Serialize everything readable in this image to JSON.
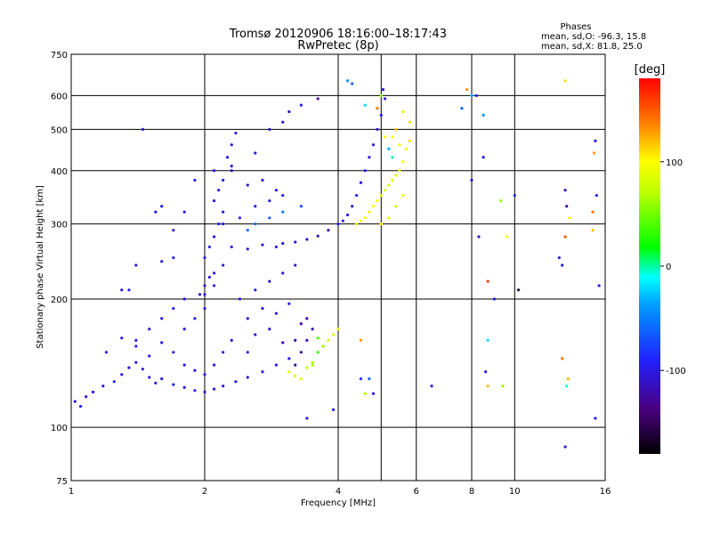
{
  "chart_data": {
    "type": "scatter",
    "title": "Tromsø 20120906 18:16:00–18:17:43",
    "subtitle": "RwPretec (8p)",
    "xlabel": "Frequency [MHz]",
    "ylabel": "Stationary phase Virtual Height [km]",
    "x_scale": "log",
    "y_scale": "log",
    "xlim": [
      1,
      16
    ],
    "ylim": [
      75,
      750
    ],
    "x_ticks": [
      1,
      2,
      4,
      6,
      8,
      10,
      16
    ],
    "x_tick_labels": [
      "1",
      "2",
      "4",
      "6",
      "8",
      "10",
      "16"
    ],
    "y_ticks": [
      75,
      100,
      200,
      300,
      400,
      500,
      600,
      750
    ],
    "y_tick_labels": [
      "75",
      "100",
      "200",
      "300",
      "400",
      "500",
      "600",
      "750"
    ],
    "x_grid": [
      1,
      2,
      4,
      5,
      6,
      8,
      10,
      16
    ],
    "y_grid": [
      100,
      200,
      300,
      400,
      500,
      600,
      750
    ],
    "grid": true,
    "phases_header": "Phases",
    "stats": [
      "mean, sd,O: -96.3, 15.8",
      "mean, sd,X:  81.8, 25.0"
    ],
    "colorbar": {
      "label": "[deg]",
      "range": [
        -180,
        180
      ],
      "ticks": [
        100,
        0,
        -100
      ],
      "tick_labels": [
        "100",
        "0",
        "-100"
      ]
    },
    "series": [
      {
        "points": [
          [
            1.02,
            115,
            -100
          ],
          [
            1.05,
            112,
            -100
          ],
          [
            1.08,
            118,
            -105
          ],
          [
            1.12,
            121,
            -100
          ],
          [
            1.18,
            125,
            -102
          ],
          [
            1.25,
            128,
            -98
          ],
          [
            1.3,
            133,
            -100
          ],
          [
            1.35,
            138,
            -104
          ],
          [
            1.4,
            142,
            -100
          ],
          [
            1.45,
            137,
            -99
          ],
          [
            1.5,
            131,
            -101
          ],
          [
            1.55,
            127,
            -103
          ],
          [
            1.6,
            130,
            -100
          ],
          [
            1.7,
            126,
            -98
          ],
          [
            1.8,
            124,
            -101
          ],
          [
            1.9,
            122,
            -100
          ],
          [
            2.0,
            121,
            -99
          ],
          [
            2.1,
            123,
            -100
          ],
          [
            2.2,
            125,
            -102
          ],
          [
            2.35,
            128,
            -100
          ],
          [
            2.5,
            131,
            -98
          ],
          [
            2.7,
            135,
            -103
          ],
          [
            2.9,
            140,
            -100
          ],
          [
            3.1,
            145,
            -101
          ],
          [
            1.2,
            150,
            -100
          ],
          [
            1.3,
            162,
            -105
          ],
          [
            1.4,
            155,
            -98
          ],
          [
            1.5,
            147,
            -100
          ],
          [
            1.6,
            158,
            -102
          ],
          [
            1.7,
            150,
            -100
          ],
          [
            1.8,
            140,
            -101
          ],
          [
            1.9,
            136,
            -100
          ],
          [
            2.0,
            133,
            -100
          ],
          [
            2.1,
            140,
            -99
          ],
          [
            2.2,
            150,
            -100
          ],
          [
            2.3,
            160,
            -100
          ],
          [
            2.5,
            150,
            -97
          ],
          [
            2.6,
            165,
            -105
          ],
          [
            2.8,
            170,
            -100
          ],
          [
            3.0,
            158,
            -120
          ],
          [
            3.2,
            160,
            -125
          ],
          [
            3.3,
            175,
            -120
          ],
          [
            1.8,
            170,
            -100
          ],
          [
            1.9,
            180,
            -101
          ],
          [
            2.0,
            190,
            -100
          ],
          [
            2.0,
            205,
            -98
          ],
          [
            2.1,
            215,
            -100
          ],
          [
            2.1,
            230,
            -100
          ],
          [
            2.2,
            240,
            -102
          ],
          [
            2.0,
            250,
            -100
          ],
          [
            2.05,
            265,
            -99
          ],
          [
            2.1,
            280,
            -100
          ],
          [
            2.15,
            300,
            -100
          ],
          [
            2.2,
            320,
            -101
          ],
          [
            2.1,
            340,
            -100
          ],
          [
            2.15,
            360,
            -98
          ],
          [
            2.2,
            380,
            -100
          ],
          [
            2.3,
            400,
            -103
          ],
          [
            2.25,
            430,
            -100
          ],
          [
            2.3,
            460,
            -100
          ],
          [
            2.35,
            490,
            -100
          ],
          [
            1.95,
            205,
            -110
          ],
          [
            2.0,
            215,
            -105
          ],
          [
            2.05,
            225,
            -100
          ],
          [
            2.3,
            265,
            -100
          ],
          [
            2.5,
            262,
            -100
          ],
          [
            2.7,
            268,
            -101
          ],
          [
            2.9,
            265,
            -100
          ],
          [
            3.0,
            270,
            -100
          ],
          [
            3.2,
            272,
            -102
          ],
          [
            3.4,
            276,
            -110
          ],
          [
            3.6,
            281,
            -115
          ],
          [
            3.8,
            290,
            -125
          ],
          [
            4.0,
            300,
            -100
          ],
          [
            4.1,
            305,
            -100
          ],
          [
            4.2,
            315,
            -101
          ],
          [
            4.3,
            330,
            -100
          ],
          [
            4.4,
            350,
            -100
          ],
          [
            4.5,
            375,
            -102
          ],
          [
            4.6,
            400,
            -100
          ],
          [
            4.7,
            430,
            -100
          ],
          [
            4.8,
            460,
            -99
          ],
          [
            4.9,
            500,
            -100
          ],
          [
            5.0,
            540,
            -100
          ],
          [
            5.1,
            590,
            -100
          ],
          [
            5.05,
            620,
            -100
          ],
          [
            2.5,
            290,
            -60
          ],
          [
            2.6,
            300,
            -55
          ],
          [
            2.8,
            310,
            -65
          ],
          [
            3.0,
            320,
            -50
          ],
          [
            3.3,
            330,
            -70
          ],
          [
            2.2,
            300,
            -100
          ],
          [
            2.4,
            310,
            -100
          ],
          [
            2.6,
            330,
            -100
          ],
          [
            2.8,
            340,
            -100
          ],
          [
            3.0,
            350,
            -100
          ],
          [
            2.1,
            400,
            -100
          ],
          [
            2.3,
            410,
            -100
          ],
          [
            2.5,
            370,
            -100
          ],
          [
            2.7,
            380,
            -100
          ],
          [
            2.9,
            360,
            -100
          ],
          [
            2.6,
            440,
            -100
          ],
          [
            2.8,
            500,
            -100
          ],
          [
            3.0,
            520,
            -110
          ],
          [
            3.1,
            550,
            -115
          ],
          [
            3.3,
            570,
            -100
          ],
          [
            3.6,
            590,
            -130
          ],
          [
            1.45,
            500,
            -100
          ],
          [
            1.55,
            320,
            -100
          ],
          [
            1.6,
            330,
            -100
          ],
          [
            1.7,
            290,
            -100
          ],
          [
            1.8,
            320,
            -100
          ],
          [
            1.9,
            380,
            -100
          ],
          [
            1.4,
            240,
            -100
          ],
          [
            1.6,
            245,
            -100
          ],
          [
            1.7,
            250,
            -100
          ],
          [
            1.3,
            210,
            -100
          ],
          [
            1.35,
            210,
            -100
          ],
          [
            2.4,
            200,
            -100
          ],
          [
            2.6,
            210,
            -100
          ],
          [
            2.8,
            220,
            -100
          ],
          [
            3.0,
            230,
            -100
          ],
          [
            3.2,
            240,
            -100
          ],
          [
            2.5,
            180,
            -100
          ],
          [
            2.7,
            190,
            -100
          ],
          [
            2.9,
            185,
            -100
          ],
          [
            3.1,
            195,
            -100
          ],
          [
            3.4,
            180,
            -120
          ],
          [
            3.4,
            160,
            -115
          ],
          [
            3.5,
            170,
            -120
          ],
          [
            3.3,
            150,
            -120
          ],
          [
            3.2,
            140,
            -125
          ],
          [
            1.4,
            160,
            -100
          ],
          [
            1.5,
            170,
            -100
          ],
          [
            1.6,
            180,
            -100
          ],
          [
            1.7,
            190,
            -100
          ],
          [
            1.8,
            200,
            -100
          ],
          [
            3.1,
            135,
            85
          ],
          [
            3.2,
            132,
            80
          ],
          [
            3.3,
            130,
            90
          ],
          [
            3.4,
            138,
            75
          ],
          [
            3.5,
            142,
            70
          ],
          [
            3.6,
            150,
            30
          ],
          [
            3.7,
            155,
            60
          ],
          [
            3.8,
            160,
            80
          ],
          [
            3.9,
            165,
            85
          ],
          [
            4.0,
            170,
            90
          ],
          [
            3.6,
            162,
            40
          ],
          [
            3.5,
            140,
            65
          ],
          [
            4.4,
            300,
            90
          ],
          [
            4.5,
            305,
            95
          ],
          [
            4.6,
            310,
            100
          ],
          [
            4.7,
            320,
            105
          ],
          [
            4.8,
            330,
            100
          ],
          [
            4.9,
            340,
            95
          ],
          [
            5.0,
            350,
            90
          ],
          [
            5.1,
            360,
            85
          ],
          [
            5.2,
            370,
            80
          ],
          [
            5.3,
            380,
            85
          ],
          [
            5.4,
            390,
            90
          ],
          [
            5.5,
            400,
            95
          ],
          [
            5.6,
            420,
            100
          ],
          [
            5.7,
            450,
            105
          ],
          [
            5.8,
            470,
            110
          ],
          [
            5.3,
            480,
            100
          ],
          [
            5.5,
            460,
            95
          ],
          [
            5.6,
            350,
            85
          ],
          [
            5.4,
            330,
            80
          ],
          [
            5.2,
            310,
            90
          ],
          [
            5.0,
            300,
            95
          ],
          [
            4.2,
            650,
            -40
          ],
          [
            4.3,
            640,
            -60
          ],
          [
            4.6,
            570,
            -20
          ],
          [
            4.9,
            560,
            140
          ],
          [
            5.0,
            600,
            60
          ],
          [
            5.1,
            480,
            100
          ],
          [
            5.2,
            450,
            -30
          ],
          [
            5.3,
            430,
            0
          ],
          [
            5.4,
            500,
            120
          ],
          [
            5.6,
            550,
            90
          ],
          [
            5.8,
            520,
            110
          ],
          [
            4.5,
            160,
            130
          ],
          [
            4.6,
            120,
            70
          ],
          [
            4.5,
            130,
            -80
          ],
          [
            4.7,
            130,
            -60
          ],
          [
            4.8,
            120,
            -100
          ],
          [
            3.9,
            110,
            -100
          ],
          [
            3.4,
            105,
            -100
          ],
          [
            7.8,
            620,
            130
          ],
          [
            8.0,
            600,
            -30
          ],
          [
            8.2,
            600,
            -100
          ],
          [
            8.5,
            540,
            -40
          ],
          [
            7.6,
            560,
            -60
          ],
          [
            8.0,
            380,
            -100
          ],
          [
            8.5,
            430,
            -100
          ],
          [
            8.3,
            280,
            -110
          ],
          [
            8.7,
            220,
            160
          ],
          [
            9.0,
            200,
            -100
          ],
          [
            9.3,
            340,
            60
          ],
          [
            9.6,
            280,
            100
          ],
          [
            10.0,
            350,
            -100
          ],
          [
            10.2,
            210,
            -150
          ],
          [
            13.0,
            650,
            110
          ],
          [
            13.0,
            360,
            -120
          ],
          [
            13.1,
            330,
            -130
          ],
          [
            13.3,
            310,
            100
          ],
          [
            13.0,
            280,
            150
          ],
          [
            12.6,
            250,
            -100
          ],
          [
            12.8,
            240,
            -100
          ],
          [
            15.0,
            320,
            140
          ],
          [
            15.0,
            290,
            120
          ],
          [
            15.2,
            470,
            -100
          ],
          [
            15.1,
            440,
            130
          ],
          [
            15.3,
            350,
            -100
          ],
          [
            15.5,
            215,
            -100
          ],
          [
            15.2,
            105,
            -100
          ],
          [
            13.0,
            90,
            -100
          ],
          [
            12.8,
            145,
            140
          ],
          [
            13.1,
            125,
            -10
          ],
          [
            13.2,
            130,
            120
          ],
          [
            8.6,
            135,
            -100
          ],
          [
            8.7,
            125,
            120
          ],
          [
            9.4,
            125,
            60
          ],
          [
            8.7,
            160,
            -20
          ],
          [
            6.5,
            125,
            -100
          ]
        ]
      }
    ]
  }
}
